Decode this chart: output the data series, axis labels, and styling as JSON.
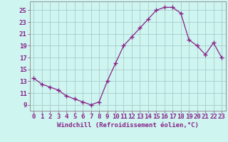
{
  "x": [
    0,
    1,
    2,
    3,
    4,
    5,
    6,
    7,
    8,
    9,
    10,
    11,
    12,
    13,
    14,
    15,
    16,
    17,
    18,
    19,
    20,
    21,
    22,
    23
  ],
  "y": [
    13.5,
    12.5,
    12.0,
    11.5,
    10.5,
    10.0,
    9.5,
    9.0,
    9.5,
    13.0,
    16.0,
    19.0,
    20.5,
    22.0,
    23.5,
    25.0,
    25.5,
    25.5,
    24.5,
    20.0,
    19.0,
    17.5,
    19.5,
    17.0
  ],
  "line_color": "#882288",
  "marker": "P",
  "marker_size": 3,
  "bg_color": "#cef5f0",
  "grid_color": "#aacccc",
  "xlabel": "Windchill (Refroidissement éolien,°C)",
  "xlabel_color": "#882288",
  "yticks": [
    9,
    11,
    13,
    15,
    17,
    19,
    21,
    23,
    25
  ],
  "xticks": [
    0,
    1,
    2,
    3,
    4,
    5,
    6,
    7,
    8,
    9,
    10,
    11,
    12,
    13,
    14,
    15,
    16,
    17,
    18,
    19,
    20,
    21,
    22,
    23
  ],
  "ylim": [
    8.0,
    26.5
  ],
  "xlim": [
    -0.5,
    23.5
  ],
  "tick_fontsize": 6.5,
  "xlabel_fontsize": 6.5
}
